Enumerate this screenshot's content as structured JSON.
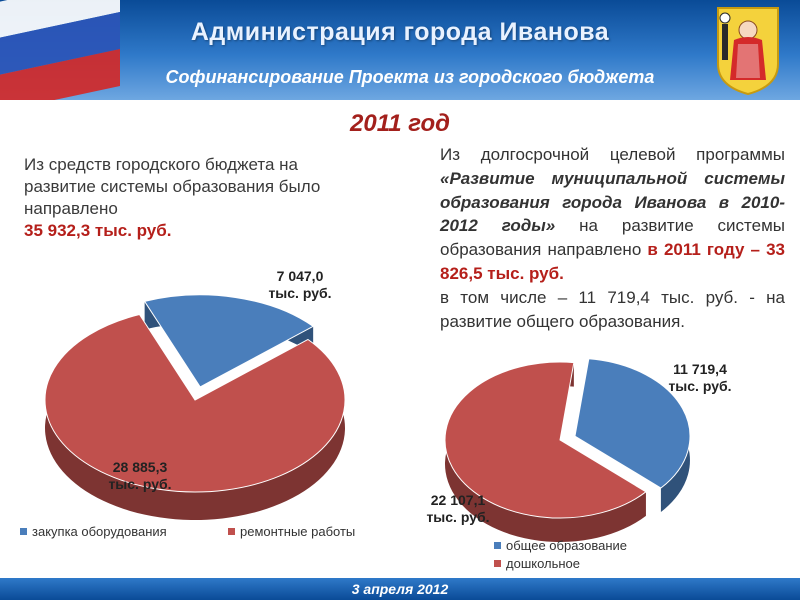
{
  "header": {
    "title": "Администрация города Иванова",
    "subtitle": "Софинансирование Проекта из городского бюджета"
  },
  "year": "2011 год",
  "left_text": {
    "body": "Из средств городского бюджета на развитие системы образования было направлено",
    "amount": "35 932,3 тыс. руб."
  },
  "right_text": {
    "part1": "Из долгосрочной целевой программы",
    "program": "«Развитие муниципальной системы образования города Иванова в 2010-2012 годы»",
    "part2": "на развитие системы образования направлено",
    "amount": "в 2011 году – 33 826,5 тыс. руб.",
    "part3": "в том числе – 11 719,4 тыс. руб. - на развитие общего образования."
  },
  "footer": {
    "date": "3 апреля 2012"
  },
  "chart_data": [
    {
      "type": "pie",
      "series": [
        {
          "name": "закупка оборудования",
          "value": 7047.0,
          "label": "7 047,0 тыс. руб.",
          "color": "#4a7ebb"
        },
        {
          "name": "ремонтные работы",
          "value": 28885.3,
          "label": "28 885,3 тыс. руб.",
          "color": "#c0504d"
        }
      ],
      "legend": [
        "закупка оборудования",
        "ремонтные работы"
      ],
      "legend_position": "bottom"
    },
    {
      "type": "pie",
      "series": [
        {
          "name": "общее образование",
          "value": 11719.4,
          "label": "11 719,4 тыс. руб.",
          "color": "#4a7ebb"
        },
        {
          "name": "дошкольное",
          "value": 22107.1,
          "label": "22 107,1 тыс. руб.",
          "color": "#c0504d"
        }
      ],
      "legend": [
        "общее образование",
        "дошкольное"
      ],
      "legend_position": "bottom"
    }
  ]
}
